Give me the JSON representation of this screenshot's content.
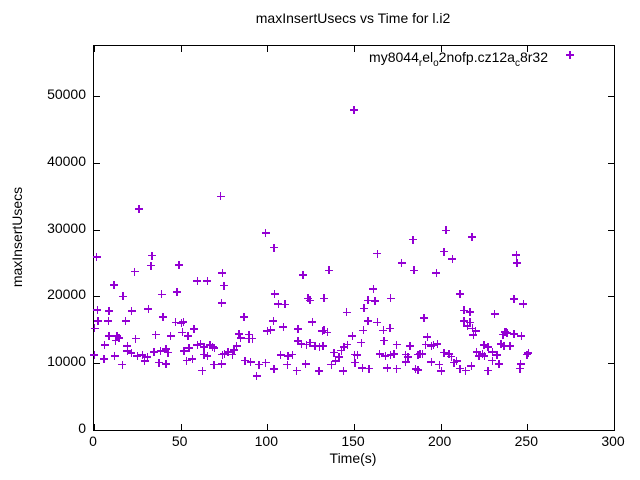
{
  "chart_data": {
    "type": "scatter",
    "title": "maxInsertUsecs vs Time for l.i2",
    "xlabel": "Time(s)",
    "ylabel": "maxInsertUsecs",
    "xlim": [
      0,
      300
    ],
    "ylim": [
      0,
      57500
    ],
    "x_ticks": [
      0,
      50,
      100,
      150,
      200,
      250,
      300
    ],
    "y_ticks": [
      0,
      10000,
      20000,
      30000,
      40000,
      50000
    ],
    "grid": false,
    "legend_position": "top-right-inside",
    "series": [
      {
        "name_parts": [
          [
            "t",
            "my8044"
          ],
          [
            "sub",
            "r"
          ],
          [
            "t",
            "el"
          ],
          [
            "sub",
            "o"
          ],
          [
            "t",
            "2nofp.cz12a"
          ],
          [
            "sub",
            "c"
          ],
          [
            "t",
            "8r32"
          ]
        ],
        "marker": "plus",
        "color": "#9400D3",
        "points": [
          [
            150,
            47900
          ],
          [
            26,
            33100
          ],
          [
            73,
            35000
          ],
          [
            99,
            29500
          ],
          [
            184,
            28500
          ],
          [
            203,
            29900
          ],
          [
            218,
            28900
          ],
          [
            1.5,
            25900
          ],
          [
            33.6,
            26100
          ],
          [
            33,
            24600
          ],
          [
            49,
            24700
          ],
          [
            23.5,
            23700
          ],
          [
            11.5,
            21700
          ],
          [
            59.6,
            22300
          ],
          [
            65.4,
            22300
          ],
          [
            74,
            23500
          ],
          [
            16.7,
            20000
          ],
          [
            39,
            20300
          ],
          [
            48,
            20700
          ],
          [
            73.6,
            19000
          ],
          [
            1.9,
            18000
          ],
          [
            8.7,
            17800
          ],
          [
            21.7,
            17800
          ],
          [
            31.3,
            18100
          ],
          [
            2.3,
            16300
          ],
          [
            8.3,
            16300
          ],
          [
            18.3,
            16300
          ],
          [
            39.8,
            16900
          ],
          [
            47.1,
            16100
          ],
          [
            50.4,
            16000
          ],
          [
            51.5,
            16200
          ],
          [
            57.7,
            15100
          ],
          [
            0.3,
            15200
          ],
          [
            35.6,
            14300
          ],
          [
            13.4,
            14100
          ],
          [
            54.2,
            14100
          ],
          [
            8.7,
            14100
          ],
          [
            14.4,
            13800
          ],
          [
            12.5,
            13400
          ],
          [
            24,
            13700
          ],
          [
            44.2,
            14100
          ],
          [
            51,
            14600
          ],
          [
            6.2,
            12700
          ],
          [
            19.2,
            12600
          ],
          [
            19.2,
            11800
          ],
          [
            21.5,
            11500
          ],
          [
            0.2,
            11200
          ],
          [
            5.8,
            10600
          ],
          [
            11.9,
            11100
          ],
          [
            16.3,
            9800
          ],
          [
            25,
            11100
          ],
          [
            27.9,
            11200
          ],
          [
            29.2,
            10300
          ],
          [
            30.8,
            10900
          ],
          [
            34.6,
            11700
          ],
          [
            38.5,
            11800
          ],
          [
            41.4,
            12100
          ],
          [
            42.7,
            11600
          ],
          [
            37.5,
            10100
          ],
          [
            41.4,
            9900
          ],
          [
            53.5,
            10400
          ],
          [
            56.7,
            10600
          ],
          [
            51.9,
            11800
          ],
          [
            54.8,
            12300
          ],
          [
            59.6,
            12700
          ],
          [
            61.5,
            12900
          ],
          [
            63.5,
            12400
          ],
          [
            67,
            12700
          ],
          [
            68.5,
            12500
          ],
          [
            69.5,
            12300
          ],
          [
            63.5,
            11300
          ],
          [
            65.4,
            11100
          ],
          [
            62.5,
            8900
          ],
          [
            69.2,
            9800
          ],
          [
            73.6,
            9900
          ],
          [
            74,
            11300
          ],
          [
            75,
            21600
          ],
          [
            103.8,
            27300
          ],
          [
            120.6,
            23200
          ],
          [
            135.6,
            23900
          ],
          [
            104.2,
            20400
          ],
          [
            106.3,
            18900
          ],
          [
            110.2,
            18800
          ],
          [
            123.5,
            19700
          ],
          [
            124.5,
            19400
          ],
          [
            132.7,
            19700
          ],
          [
            86.5,
            16900
          ],
          [
            103.5,
            16300
          ],
          [
            101.9,
            15000
          ],
          [
            100,
            14800
          ],
          [
            109.2,
            15400
          ],
          [
            117.7,
            15100
          ],
          [
            126,
            16200
          ],
          [
            132.7,
            14900
          ],
          [
            134.6,
            14600
          ],
          [
            145.8,
            17600
          ],
          [
            84.6,
            13800
          ],
          [
            89.4,
            13700
          ],
          [
            83.7,
            14400
          ],
          [
            89.4,
            14300
          ],
          [
            91.3,
            13700
          ],
          [
            82.3,
            12600
          ],
          [
            75.2,
            11400
          ],
          [
            77.2,
            11700
          ],
          [
            79.8,
            11300
          ],
          [
            80.8,
            12000
          ],
          [
            87,
            10400
          ],
          [
            90.4,
            10200
          ],
          [
            93.8,
            8100
          ],
          [
            95.2,
            9800
          ],
          [
            99,
            10100
          ],
          [
            103.8,
            9100
          ],
          [
            111.5,
            9800
          ],
          [
            112,
            11100
          ],
          [
            114.4,
            11300
          ],
          [
            107.7,
            11200
          ],
          [
            116.9,
            8900
          ],
          [
            122.1,
            9900
          ],
          [
            122.7,
            12800
          ],
          [
            119.6,
            12900
          ],
          [
            117.7,
            13300
          ],
          [
            124.6,
            13100
          ],
          [
            127.5,
            12600
          ],
          [
            130,
            12500
          ],
          [
            132.1,
            12600
          ],
          [
            129.8,
            8800
          ],
          [
            138.5,
            11600
          ],
          [
            136.9,
            9800
          ],
          [
            139.4,
            10300
          ],
          [
            141.3,
            10900
          ],
          [
            142.7,
            11900
          ],
          [
            144.2,
            12400
          ],
          [
            146.2,
            12800
          ],
          [
            143.8,
            8800
          ],
          [
            149,
            14100
          ],
          [
            131.7,
            14800
          ],
          [
            163.5,
            26400
          ],
          [
            202,
            26700
          ],
          [
            206.7,
            25600
          ],
          [
            177.5,
            25000
          ],
          [
            184.6,
            23900
          ],
          [
            197.5,
            23500
          ],
          [
            161.2,
            21100
          ],
          [
            158.1,
            19400
          ],
          [
            162,
            19300
          ],
          [
            171.2,
            19700
          ],
          [
            155.8,
            18200
          ],
          [
            211.2,
            20400
          ],
          [
            158.1,
            16300
          ],
          [
            163.5,
            16100
          ],
          [
            155.4,
            14900
          ],
          [
            166.9,
            14900
          ],
          [
            170.8,
            15200
          ],
          [
            190.4,
            16800
          ],
          [
            213.5,
            17900
          ],
          [
            216.9,
            17700
          ],
          [
            213.5,
            16300
          ],
          [
            216.9,
            16100
          ],
          [
            215.4,
            15600
          ],
          [
            218.3,
            15200
          ],
          [
            220.2,
            14800
          ],
          [
            154.2,
            13100
          ],
          [
            167.3,
            13400
          ],
          [
            174.6,
            12800
          ],
          [
            182.3,
            12600
          ],
          [
            150.3,
            11300
          ],
          [
            151.9,
            11200
          ],
          [
            150.5,
            10100
          ],
          [
            164.8,
            11400
          ],
          [
            168.1,
            11100
          ],
          [
            171.2,
            11200
          ],
          [
            173.1,
            11400
          ],
          [
            154.8,
            9300
          ],
          [
            158.7,
            9200
          ],
          [
            169.2,
            9300
          ],
          [
            174.6,
            9200
          ],
          [
            179.8,
            10200
          ],
          [
            181.2,
            10900
          ],
          [
            179.8,
            11300
          ],
          [
            185.6,
            9100
          ],
          [
            186.8,
            9000
          ],
          [
            186.9,
            11300
          ],
          [
            188,
            11400
          ],
          [
            189.4,
            11400
          ],
          [
            192.3,
            13900
          ],
          [
            191.3,
            12800
          ],
          [
            194.6,
            12600
          ],
          [
            196,
            12700
          ],
          [
            198.1,
            12900
          ],
          [
            194.6,
            10200
          ],
          [
            199.2,
            9800
          ],
          [
            200.4,
            8800
          ],
          [
            202,
            11600
          ],
          [
            204.8,
            11400
          ],
          [
            206.2,
            11000
          ],
          [
            207.7,
            10100
          ],
          [
            209.2,
            10300
          ],
          [
            211.2,
            9200
          ],
          [
            214.4,
            8900
          ],
          [
            217.7,
            9600
          ],
          [
            218.8,
            14200
          ],
          [
            220.8,
            11700
          ],
          [
            222.1,
            11100
          ],
          [
            224,
            11400
          ],
          [
            243.7,
            26200
          ],
          [
            243.9,
            25000
          ],
          [
            242.3,
            19600
          ],
          [
            247.7,
            18900
          ],
          [
            231.2,
            17400
          ],
          [
            237.2,
            14700
          ],
          [
            238.4,
            14500
          ],
          [
            246.5,
            14100
          ],
          [
            236,
            14300
          ],
          [
            237.7,
            14600
          ],
          [
            242.3,
            14400
          ],
          [
            225,
            12700
          ],
          [
            227.3,
            12400
          ],
          [
            234.8,
            12900
          ],
          [
            236.5,
            12600
          ],
          [
            240,
            12600
          ],
          [
            225.2,
            11100
          ],
          [
            229.8,
            11700
          ],
          [
            232.5,
            11200
          ],
          [
            229.8,
            10400
          ],
          [
            233.7,
            9900
          ],
          [
            227.3,
            8900
          ],
          [
            246.2,
            9900
          ],
          [
            245.8,
            9200
          ],
          [
            249.8,
            11300
          ],
          [
            250.6,
            11500
          ]
        ]
      }
    ]
  }
}
